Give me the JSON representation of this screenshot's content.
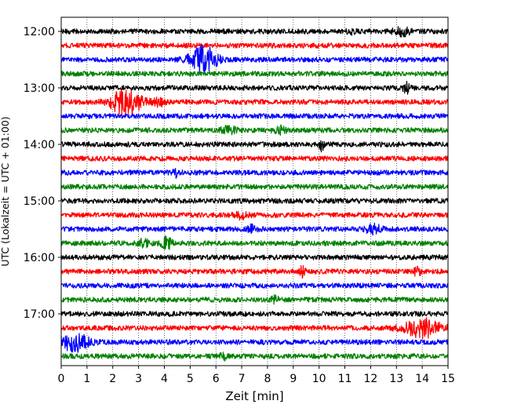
{
  "chart_data": {
    "type": "line",
    "title": "",
    "xlabel": "Zeit  [min]",
    "ylabel": "UTC (Lokalzeit = UTC + 01:00)",
    "xlim": [
      0,
      15
    ],
    "x_ticks": [
      "0",
      "1",
      "2",
      "3",
      "4",
      "5",
      "6",
      "7",
      "8",
      "9",
      "10",
      "11",
      "12",
      "13",
      "14",
      "15"
    ],
    "y_ticks": [
      "12:00",
      "13:00",
      "14:00",
      "15:00",
      "16:00",
      "17:00"
    ],
    "row_interval_minutes": 15,
    "color_cycle": [
      "#000000",
      "#ff0000",
      "#0000ff",
      "#008000"
    ],
    "grid": "vertical dotted lines at each minute",
    "rows": [
      {
        "start": "12:00",
        "color": "#000000",
        "events": [
          {
            "t": 13.2,
            "amp": 0.45,
            "width": 0.6
          },
          {
            "t": 11.3,
            "amp": 0.25,
            "width": 0.4
          }
        ]
      },
      {
        "start": "12:15",
        "color": "#ff0000",
        "events": []
      },
      {
        "start": "12:30",
        "color": "#0000ff",
        "events": [
          {
            "t": 5.5,
            "amp": 1.7,
            "width": 1.0
          }
        ]
      },
      {
        "start": "12:45",
        "color": "#008000",
        "events": []
      },
      {
        "start": "13:00",
        "color": "#000000",
        "events": [
          {
            "t": 13.4,
            "amp": 0.55,
            "width": 0.3
          }
        ]
      },
      {
        "start": "13:15",
        "color": "#ff0000",
        "events": [
          {
            "t": 2.5,
            "amp": 1.6,
            "width": 1.2
          },
          {
            "t": 3.8,
            "amp": 0.4,
            "width": 0.5
          }
        ]
      },
      {
        "start": "13:30",
        "color": "#0000ff",
        "events": []
      },
      {
        "start": "13:45",
        "color": "#008000",
        "events": [
          {
            "t": 6.5,
            "amp": 0.4,
            "width": 0.6
          },
          {
            "t": 8.5,
            "amp": 0.4,
            "width": 0.5
          }
        ]
      },
      {
        "start": "14:00",
        "color": "#000000",
        "events": [
          {
            "t": 10.1,
            "amp": 0.7,
            "width": 0.2
          }
        ]
      },
      {
        "start": "14:15",
        "color": "#ff0000",
        "events": []
      },
      {
        "start": "14:30",
        "color": "#0000ff",
        "events": [
          {
            "t": 4.5,
            "amp": 0.5,
            "width": 0.3
          }
        ]
      },
      {
        "start": "14:45",
        "color": "#008000",
        "events": []
      },
      {
        "start": "15:00",
        "color": "#000000",
        "events": []
      },
      {
        "start": "15:15",
        "color": "#ff0000",
        "events": [
          {
            "t": 7.0,
            "amp": 0.4,
            "width": 0.5
          }
        ]
      },
      {
        "start": "15:30",
        "color": "#0000ff",
        "events": [
          {
            "t": 7.4,
            "amp": 0.5,
            "width": 0.3
          },
          {
            "t": 12.1,
            "amp": 0.5,
            "width": 0.6
          }
        ]
      },
      {
        "start": "15:45",
        "color": "#008000",
        "events": [
          {
            "t": 3.2,
            "amp": 0.45,
            "width": 0.4
          },
          {
            "t": 4.1,
            "amp": 0.7,
            "width": 0.4
          }
        ]
      },
      {
        "start": "16:00",
        "color": "#000000",
        "events": []
      },
      {
        "start": "16:15",
        "color": "#ff0000",
        "events": [
          {
            "t": 9.3,
            "amp": 0.6,
            "width": 0.3
          },
          {
            "t": 13.8,
            "amp": 0.4,
            "width": 0.3
          }
        ]
      },
      {
        "start": "16:30",
        "color": "#0000ff",
        "events": []
      },
      {
        "start": "16:45",
        "color": "#008000",
        "events": [
          {
            "t": 8.3,
            "amp": 0.35,
            "width": 0.3
          }
        ]
      },
      {
        "start": "17:00",
        "color": "#000000",
        "events": []
      },
      {
        "start": "17:15",
        "color": "#ff0000",
        "events": [
          {
            "t": 14.0,
            "amp": 1.1,
            "width": 1.4
          }
        ]
      },
      {
        "start": "17:30",
        "color": "#0000ff",
        "events": [
          {
            "t": 0.5,
            "amp": 1.1,
            "width": 1.1
          }
        ]
      },
      {
        "start": "17:45",
        "color": "#008000",
        "events": [
          {
            "t": 6.3,
            "amp": 0.35,
            "width": 0.3
          }
        ]
      }
    ]
  }
}
